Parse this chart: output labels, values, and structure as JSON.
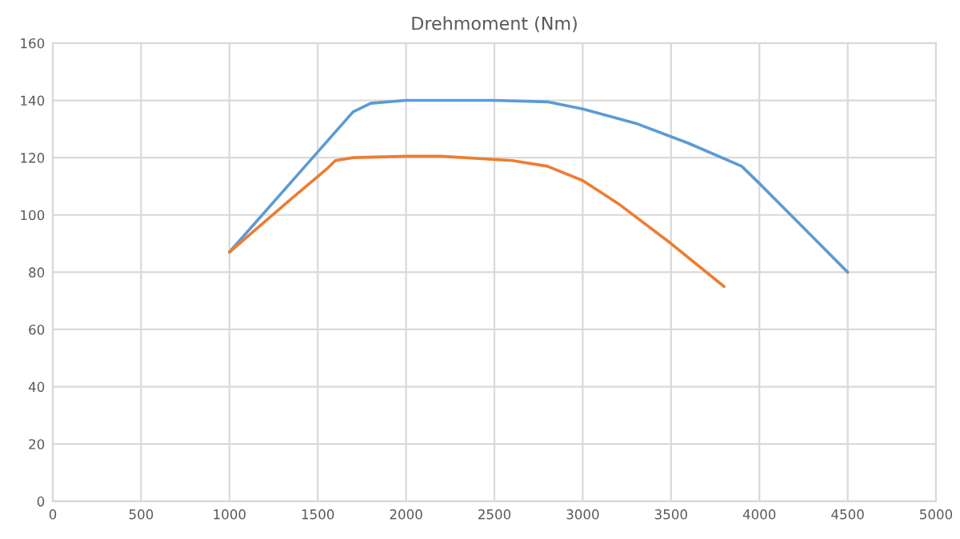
{
  "chart_data": {
    "type": "line",
    "title": "Drehmoment (Nm)",
    "series": [
      {
        "color": "#5b9bd5",
        "x": [
          1000,
          1300,
          1600,
          1700,
          1800,
          2000,
          2500,
          2800,
          3000,
          3300,
          3600,
          3900,
          4000,
          4500
        ],
        "values": [
          87,
          108,
          129,
          136,
          139,
          140,
          140,
          139.5,
          137,
          132,
          125,
          117,
          111,
          80
        ]
      },
      {
        "color": "#ed7d31",
        "x": [
          1000,
          1300,
          1550,
          1600,
          1700,
          2000,
          2200,
          2600,
          2800,
          3000,
          3200,
          3500,
          3800
        ],
        "values": [
          87,
          103,
          116,
          119,
          120,
          120.5,
          120.5,
          119,
          117,
          112,
          104,
          90,
          75
        ]
      }
    ],
    "xlim": [
      0,
      5000
    ],
    "xticks": [
      0,
      500,
      1000,
      1500,
      2000,
      2500,
      3000,
      3500,
      4000,
      4500,
      5000
    ],
    "ylim": [
      0,
      160
    ],
    "yticks": [
      0,
      20,
      40,
      60,
      80,
      100,
      120,
      140,
      160
    ],
    "grid": true,
    "marker": "none",
    "line_style": "solid"
  }
}
